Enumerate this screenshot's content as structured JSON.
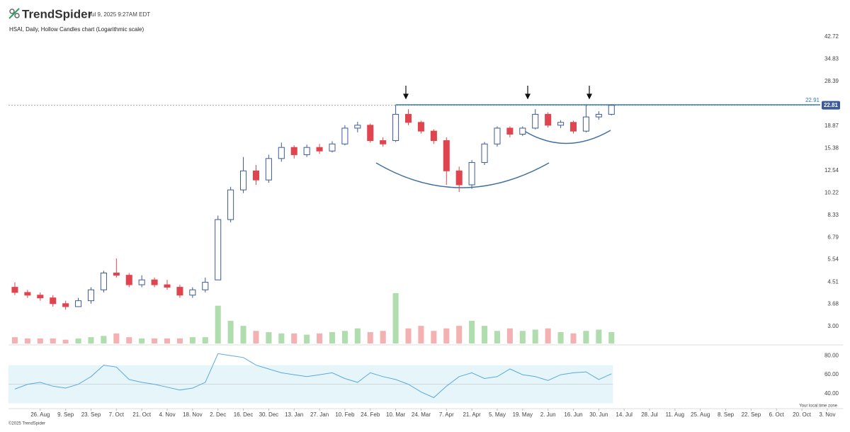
{
  "header": {
    "brand": "TrendSpider",
    "timestamp": "Jul 9, 2025 9:27AM EDT",
    "footer": "©2025 TrendSpider",
    "time_zone_note": "Your local time zone"
  },
  "chart_data": {
    "type": "candlestick",
    "title": "HSAI, Daily, Hollow Candles chart (Logarithmic scale)",
    "log_scale": true,
    "up_color": "#3d5a98",
    "down_color": "#e0454f",
    "x": [
      -2,
      -1,
      0,
      1,
      2,
      3,
      4,
      5,
      6,
      7,
      8,
      9,
      10,
      11,
      12,
      13,
      14,
      15,
      16,
      17,
      18,
      19,
      20,
      21,
      22,
      23,
      24,
      25,
      26,
      27,
      28,
      29,
      30,
      31,
      32,
      33,
      34,
      35,
      36,
      37,
      38,
      39,
      40,
      41,
      42,
      43,
      44,
      45
    ],
    "open": [
      4.3,
      4.1,
      4.0,
      3.9,
      3.7,
      3.6,
      3.8,
      4.2,
      4.9,
      4.8,
      4.4,
      4.6,
      4.4,
      4.3,
      4.0,
      4.2,
      4.6,
      8.0,
      10.5,
      12.5,
      11.5,
      14.0,
      15.5,
      14.5,
      15.5,
      15.0,
      16.0,
      18.5,
      19.0,
      16.5,
      16.5,
      21.0,
      19.5,
      18.0,
      16.5,
      12.5,
      11.0,
      13.5,
      16.0,
      18.5,
      17.5,
      18.5,
      21.0,
      19.0,
      19.5,
      18.0,
      20.5,
      21.0
    ],
    "high": [
      4.5,
      4.2,
      4.1,
      4.0,
      3.8,
      3.9,
      4.3,
      5.0,
      5.6,
      4.9,
      4.8,
      4.7,
      4.6,
      4.4,
      4.3,
      4.7,
      8.3,
      10.8,
      14.2,
      13.2,
      14.5,
      16.2,
      15.8,
      15.9,
      16.0,
      16.4,
      19.0,
      19.6,
      19.3,
      17.0,
      22.9,
      22.0,
      19.8,
      18.3,
      17.0,
      13.0,
      13.8,
      16.3,
      18.8,
      18.8,
      18.8,
      22.0,
      21.4,
      19.9,
      19.8,
      22.9,
      21.6,
      23.0
    ],
    "low": [
      4.0,
      3.9,
      3.8,
      3.6,
      3.5,
      3.6,
      3.7,
      4.1,
      4.7,
      4.3,
      4.3,
      4.3,
      4.2,
      3.9,
      3.9,
      4.1,
      4.6,
      7.8,
      10.2,
      11.0,
      11.2,
      13.6,
      14.0,
      14.2,
      14.6,
      14.8,
      15.8,
      17.8,
      16.2,
      15.6,
      16.3,
      19.0,
      17.6,
      16.0,
      11.0,
      10.3,
      10.6,
      13.2,
      15.6,
      17.0,
      17.2,
      18.3,
      18.6,
      18.5,
      17.6,
      17.8,
      20.0,
      20.8
    ],
    "close": [
      4.1,
      4.0,
      3.9,
      3.7,
      3.6,
      3.8,
      4.2,
      4.9,
      4.8,
      4.4,
      4.6,
      4.4,
      4.3,
      4.0,
      4.2,
      4.5,
      8.0,
      10.5,
      12.5,
      11.5,
      14.0,
      15.5,
      14.5,
      15.5,
      15.0,
      16.0,
      18.5,
      19.0,
      16.5,
      16.0,
      21.0,
      19.5,
      18.0,
      16.5,
      12.5,
      11.0,
      13.5,
      16.0,
      18.5,
      17.5,
      18.5,
      21.0,
      19.0,
      19.5,
      18.0,
      20.5,
      21.0,
      22.81
    ],
    "xlim": [
      -2.5,
      61
    ],
    "xticks": [
      {
        "value": 0,
        "label": "26. Aug"
      },
      {
        "value": 2,
        "label": "9. Sep"
      },
      {
        "value": 4,
        "label": "23. Sep"
      },
      {
        "value": 6,
        "label": "7. Oct"
      },
      {
        "value": 8,
        "label": "21. Oct"
      },
      {
        "value": 10,
        "label": "4. Nov"
      },
      {
        "value": 12,
        "label": "18. Nov"
      },
      {
        "value": 14,
        "label": "2. Dec"
      },
      {
        "value": 16,
        "label": "16. Dec"
      },
      {
        "value": 18,
        "label": "30. Dec"
      },
      {
        "value": 20,
        "label": "13. Jan"
      },
      {
        "value": 22,
        "label": "27. Jan"
      },
      {
        "value": 24,
        "label": "10. Feb"
      },
      {
        "value": 26,
        "label": "24. Feb"
      },
      {
        "value": 28,
        "label": "10. Mar"
      },
      {
        "value": 30,
        "label": "24. Mar"
      },
      {
        "value": 32,
        "label": "7. Apr"
      },
      {
        "value": 34,
        "label": "21. Apr"
      },
      {
        "value": 36,
        "label": "5. May"
      },
      {
        "value": 38,
        "label": "19. May"
      },
      {
        "value": 40,
        "label": "2. Jun"
      },
      {
        "value": 42,
        "label": "16. Jun"
      },
      {
        "value": 44,
        "label": "30. Jun"
      },
      {
        "value": 46,
        "label": "14. Jul"
      },
      {
        "value": 48,
        "label": "28. Jul"
      },
      {
        "value": 50,
        "label": "11. Aug"
      },
      {
        "value": 52,
        "label": "25. Aug"
      },
      {
        "value": 54,
        "label": "8. Sep"
      },
      {
        "value": 56,
        "label": "22. Sep"
      },
      {
        "value": 58,
        "label": "6. Oct"
      },
      {
        "value": 60,
        "label": "20. Oct"
      },
      {
        "value": 62,
        "label": "3. Nov"
      }
    ],
    "ylim": [
      2.74,
      46.2
    ],
    "yticks": [
      42.72,
      34.83,
      28.39,
      18.87,
      15.38,
      12.54,
      10.22,
      8.33,
      6.79,
      5.54,
      4.51,
      3.68,
      {
        "value": 3,
        "label": "3.00"
      }
    ],
    "last_price": 22.81,
    "resistance": {
      "value": 22.91,
      "start_x": 28,
      "color": "#3a7ab8"
    },
    "volume": {
      "ylim": [
        0,
        45
      ],
      "values": [
        5,
        4,
        4,
        4,
        3,
        4,
        5,
        6,
        8,
        5,
        4,
        4,
        4,
        4,
        5,
        5,
        30,
        18,
        14,
        10,
        9,
        8,
        8,
        7,
        8,
        9,
        10,
        12,
        9,
        10,
        40,
        12,
        14,
        10,
        12,
        14,
        18,
        14,
        10,
        12,
        10,
        11,
        12,
        9,
        8,
        10,
        11,
        9
      ]
    },
    "rsi": {
      "color": "#5aa8de",
      "ylim": [
        26,
        89
      ],
      "yticks": [
        {
          "value": 80,
          "label": "80.00"
        },
        {
          "value": 60,
          "label": "60.00"
        },
        {
          "value": 40,
          "label": "40.00"
        }
      ],
      "band": [
        30,
        70
      ],
      "values": [
        45,
        50,
        52,
        48,
        46,
        50,
        58,
        70,
        68,
        55,
        52,
        50,
        47,
        44,
        46,
        52,
        82,
        80,
        78,
        70,
        66,
        62,
        60,
        58,
        60,
        62,
        56,
        52,
        62,
        58,
        55,
        50,
        42,
        36,
        48,
        58,
        62,
        56,
        58,
        66,
        60,
        58,
        54,
        60,
        62,
        63,
        55,
        61
      ]
    }
  }
}
